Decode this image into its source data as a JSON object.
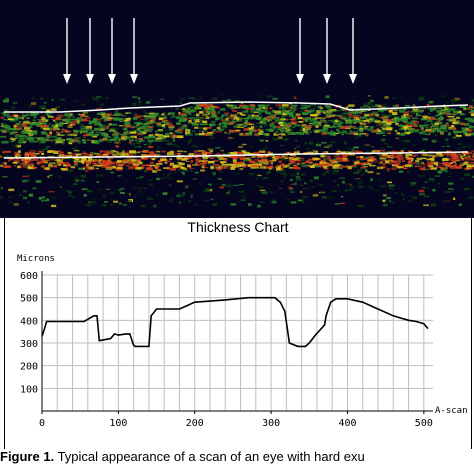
{
  "figure": {
    "caption_lead": "Figure 1.",
    "caption_text": " Typical appearance of a scan of an eye with hard exu"
  },
  "oct_image": {
    "description_colors": {
      "background": "#05051f",
      "tissue_low": "#0b3a10",
      "tissue_mid": "#2f8a2a",
      "tissue_high": "#d8c21a",
      "tissue_hot": "#d43a1a",
      "boundary_line": "#ffffff"
    },
    "arrows_count_left": 4,
    "arrows_count_right": 3
  },
  "chart_data": {
    "type": "line",
    "title": "Thickness Chart",
    "ylabel": "Microns",
    "xlabel": "A-scan",
    "xlim": [
      0,
      512
    ],
    "ylim": [
      0,
      600
    ],
    "xticks": [
      0,
      100,
      200,
      300,
      400,
      500
    ],
    "yticks": [
      100,
      200,
      300,
      400,
      500,
      600
    ],
    "grid": true,
    "line_color": "#000000",
    "series": [
      {
        "x": [
          0,
          3,
          6,
          30,
          55,
          68,
          72,
          75,
          90,
          95,
          100,
          110,
          115,
          120,
          122,
          130,
          140,
          143,
          150,
          180,
          190,
          200,
          240,
          270,
          305,
          312,
          318,
          324,
          335,
          345,
          350,
          358,
          370,
          372,
          378,
          385,
          400,
          420,
          440,
          460,
          470,
          480,
          490,
          500,
          505
        ],
        "y": [
          330,
          360,
          395,
          395,
          395,
          420,
          420,
          310,
          320,
          340,
          335,
          340,
          340,
          290,
          285,
          285,
          285,
          420,
          450,
          450,
          465,
          480,
          490,
          500,
          500,
          480,
          440,
          300,
          285,
          285,
          300,
          335,
          380,
          420,
          480,
          495,
          495,
          480,
          450,
          420,
          410,
          400,
          395,
          385,
          365
        ]
      }
    ]
  }
}
